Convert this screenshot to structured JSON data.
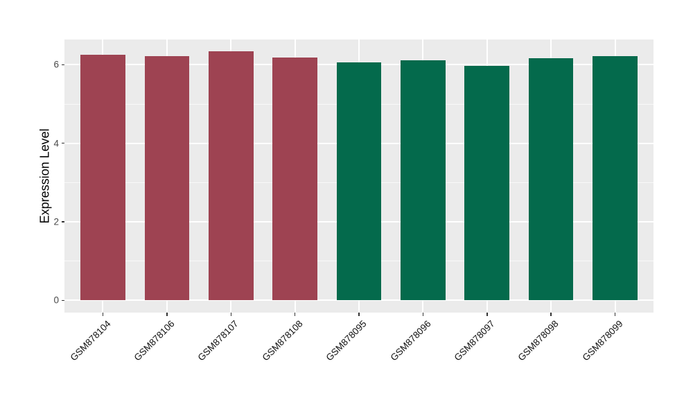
{
  "chart_data": {
    "type": "bar",
    "title": "",
    "ylabel": "Expression Level",
    "xlabel": "",
    "categories": [
      "GSM878104",
      "GSM878106",
      "GSM878107",
      "GSM878108",
      "GSM878095",
      "GSM878096",
      "GSM878097",
      "GSM878098",
      "GSM878099"
    ],
    "values": [
      6.25,
      6.22,
      6.34,
      6.18,
      6.06,
      6.12,
      5.97,
      6.16,
      6.21
    ],
    "bar_colors": [
      "#9E4352",
      "#9E4352",
      "#9E4352",
      "#9E4352",
      "#046A4C",
      "#046A4C",
      "#046A4C",
      "#046A4C",
      "#046A4C"
    ],
    "group_colors": {
      "left_group": "#9E4352",
      "right_group": "#046A4C"
    },
    "y_ticks": [
      0,
      2,
      4,
      6
    ],
    "y_minor_ticks": [
      1,
      3,
      5
    ],
    "ylim": [
      -0.31,
      6.64
    ],
    "bar_width_frac": 0.7,
    "x_expand": 0.6,
    "grid": true,
    "legend": "none",
    "panel_bg": "#EBEBEB",
    "grid_color": "#FFFFFF",
    "tick_label_color": "#4A4A4A",
    "x_label_color": "#111111",
    "axis_title_color": "#000000"
  }
}
